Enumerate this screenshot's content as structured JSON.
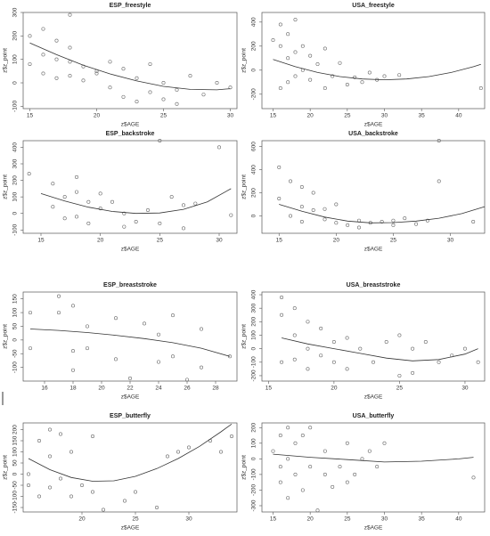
{
  "chart_data": [
    {
      "type": "scatter",
      "title": "ESP_freestyle",
      "xlabel": "z$AGE",
      "ylabel": "z$z_point",
      "xlim": [
        14.5,
        30.5
      ],
      "ylim": [
        -110,
        300
      ],
      "xticks": [
        15,
        20,
        25,
        30
      ],
      "yticks": [
        -100,
        0,
        100,
        200,
        300
      ],
      "x": [
        15,
        15,
        16,
        16,
        16,
        17,
        17,
        17,
        18,
        18,
        18,
        18,
        19,
        19,
        20,
        20,
        21,
        21,
        22,
        22,
        23,
        23,
        24,
        24,
        25,
        25,
        26,
        26,
        27,
        28,
        29,
        30
      ],
      "values": [
        200,
        80,
        230,
        120,
        40,
        180,
        100,
        20,
        290,
        150,
        90,
        30,
        70,
        10,
        50,
        40,
        90,
        -20,
        60,
        -60,
        20,
        -80,
        80,
        -40,
        0,
        -70,
        -30,
        -90,
        30,
        -50,
        0,
        -20
      ],
      "fit": {
        "x": [
          15,
          17,
          19,
          21,
          23,
          25,
          27,
          29,
          30
        ],
        "values": [
          170,
          120,
          75,
          38,
          8,
          -15,
          -28,
          -30,
          -25
        ]
      },
      "point_color": "#666666",
      "line_color": "#333333"
    },
    {
      "type": "scatter",
      "title": "USA_freestyle",
      "xlabel": "z$AGE",
      "ylabel": "z$z_point",
      "xlim": [
        13.5,
        43.5
      ],
      "ylim": [
        -320,
        480
      ],
      "xticks": [
        15,
        20,
        25,
        30,
        35,
        40
      ],
      "yticks": [
        -200,
        0,
        200,
        400
      ],
      "x": [
        15,
        16,
        16,
        16,
        17,
        17,
        17,
        18,
        18,
        18,
        19,
        19,
        20,
        20,
        21,
        22,
        22,
        23,
        24,
        25,
        26,
        27,
        28,
        29,
        30,
        32,
        43
      ],
      "values": [
        250,
        380,
        200,
        -150,
        300,
        100,
        -100,
        420,
        150,
        -50,
        200,
        0,
        120,
        -80,
        50,
        180,
        -150,
        -50,
        60,
        -120,
        -60,
        -100,
        -20,
        -80,
        -50,
        -40,
        -150
      ],
      "fit": {
        "x": [
          15,
          18,
          21,
          24,
          27,
          30,
          33,
          36,
          39,
          42,
          43
        ],
        "values": [
          90,
          29,
          -19,
          -53,
          -73,
          -80,
          -73,
          -53,
          -19,
          29,
          48
        ]
      },
      "point_color": "#666666",
      "line_color": "#333333"
    },
    {
      "type": "scatter",
      "title": "ESP_backstroke",
      "xlabel": "z$AGE",
      "ylabel": "z$z_point",
      "xlim": [
        13.5,
        31.5
      ],
      "ylim": [
        -120,
        440
      ],
      "xticks": [
        15,
        20,
        25,
        30
      ],
      "yticks": [
        -100,
        0,
        100,
        200,
        300,
        400
      ],
      "x": [
        14,
        16,
        16,
        17,
        17,
        18,
        18,
        18,
        19,
        19,
        20,
        20,
        21,
        22,
        22,
        23,
        24,
        25,
        25,
        26,
        27,
        27,
        28,
        30,
        31
      ],
      "values": [
        240,
        180,
        40,
        100,
        -30,
        220,
        130,
        -20,
        70,
        -60,
        120,
        30,
        70,
        0,
        -80,
        -50,
        20,
        440,
        -60,
        100,
        50,
        -90,
        60,
        400,
        -10
      ],
      "fit": {
        "x": [
          15,
          17,
          19,
          21,
          23,
          25,
          27,
          29,
          31
        ],
        "values": [
          120,
          75,
          38,
          12,
          0,
          3,
          25,
          70,
          150
        ]
      },
      "point_color": "#666666",
      "line_color": "#333333"
    },
    {
      "type": "scatter",
      "title": "USA_backstroke",
      "xlabel": "z$AGE",
      "ylabel": "z$z_point",
      "xlim": [
        13.5,
        33
      ],
      "ylim": [
        -150,
        650
      ],
      "xticks": [
        15,
        20,
        25,
        30
      ],
      "yticks": [
        0,
        200,
        400,
        600
      ],
      "x": [
        15,
        15,
        16,
        16,
        17,
        17,
        17,
        18,
        18,
        19,
        19,
        20,
        20,
        21,
        22,
        22,
        23,
        24,
        25,
        25,
        26,
        27,
        28,
        29,
        29,
        32
      ],
      "values": [
        420,
        150,
        300,
        0,
        250,
        80,
        -50,
        200,
        50,
        -30,
        60,
        100,
        -60,
        -80,
        -40,
        -100,
        -60,
        -50,
        -80,
        -40,
        -20,
        -70,
        -40,
        650,
        300,
        -50
      ],
      "fit": {
        "x": [
          15,
          17,
          19,
          21,
          23,
          25,
          27,
          29,
          31,
          33
        ],
        "values": [
          100,
          40,
          -10,
          -45,
          -60,
          -58,
          -45,
          -20,
          20,
          80
        ]
      },
      "point_color": "#666666",
      "line_color": "#333333"
    },
    {
      "type": "scatter",
      "title": "ESP_breaststroke",
      "xlabel": "z$AGE",
      "ylabel": "z$z_point",
      "xlim": [
        14.5,
        29.5
      ],
      "ylim": [
        -150,
        175
      ],
      "xticks": [
        16,
        18,
        20,
        22,
        24,
        26,
        28
      ],
      "yticks": [
        -100,
        -50,
        0,
        50,
        100,
        150
      ],
      "x": [
        15,
        15,
        17,
        17,
        18,
        18,
        18,
        19,
        19,
        21,
        21,
        22,
        23,
        24,
        24,
        25,
        25,
        26,
        27,
        27,
        29
      ],
      "values": [
        100,
        -30,
        160,
        100,
        125,
        -40,
        -110,
        -30,
        50,
        80,
        -70,
        -140,
        60,
        -80,
        20,
        90,
        -60,
        -145,
        40,
        -100,
        -60
      ],
      "fit": {
        "x": [
          15,
          17,
          19,
          21,
          23,
          25,
          27,
          29
        ],
        "values": [
          40,
          35,
          27,
          17,
          5,
          -10,
          -30,
          -60
        ]
      },
      "point_color": "#666666",
      "line_color": "#333333"
    },
    {
      "type": "scatter",
      "title": "USA_breaststroke",
      "xlabel": "z$AGE",
      "ylabel": "z$z_point",
      "xlim": [
        14.5,
        31.5
      ],
      "ylim": [
        -240,
        420
      ],
      "xticks": [
        15,
        20,
        25,
        30
      ],
      "yticks": [
        -200,
        -100,
        0,
        100,
        200,
        300,
        400
      ],
      "x": [
        16,
        16,
        16,
        17,
        17,
        17,
        18,
        18,
        18,
        19,
        19,
        20,
        20,
        21,
        21,
        22,
        23,
        24,
        25,
        25,
        26,
        26,
        27,
        28,
        29,
        30,
        31
      ],
      "values": [
        380,
        250,
        -100,
        300,
        100,
        -80,
        200,
        0,
        -150,
        150,
        -50,
        50,
        -100,
        80,
        -150,
        0,
        -100,
        50,
        -200,
        100,
        -180,
        0,
        50,
        -100,
        -50,
        0,
        -100
      ],
      "fit": {
        "x": [
          16,
          18,
          20,
          22,
          24,
          26,
          28,
          30,
          31
        ],
        "values": [
          80,
          35,
          0,
          -35,
          -70,
          -90,
          -80,
          -40,
          0
        ]
      },
      "point_color": "#666666",
      "line_color": "#333333"
    },
    {
      "type": "scatter",
      "title": "ESP_butterfly",
      "xlabel": "z$AGE",
      "ylabel": "z$z_point",
      "xlim": [
        14.5,
        34.5
      ],
      "ylim": [
        -170,
        230
      ],
      "xticks": [
        20,
        25,
        30
      ],
      "yticks": [
        -150,
        -100,
        -50,
        0,
        50,
        100,
        150,
        200
      ],
      "x": [
        15,
        15,
        16,
        16,
        17,
        17,
        17,
        18,
        18,
        19,
        19,
        20,
        21,
        21,
        22,
        24,
        25,
        27,
        28,
        29,
        30,
        32,
        33,
        34
      ],
      "values": [
        -50,
        0,
        150,
        -100,
        200,
        80,
        -60,
        180,
        -20,
        100,
        -100,
        -50,
        -80,
        170,
        -160,
        -120,
        -80,
        -150,
        80,
        100,
        120,
        150,
        100,
        170
      ],
      "fit": {
        "x": [
          15,
          17,
          19,
          21,
          23,
          25,
          27,
          29,
          31,
          33,
          34
        ],
        "values": [
          70,
          20,
          -15,
          -32,
          -30,
          -10,
          25,
          70,
          125,
          190,
          225
        ]
      },
      "point_color": "#666666",
      "line_color": "#333333"
    },
    {
      "type": "scatter",
      "title": "USA_butterfly",
      "xlabel": "z$AGE",
      "ylabel": "z$z_point",
      "xlim": [
        13.5,
        43.5
      ],
      "ylim": [
        -340,
        230
      ],
      "xticks": [
        15,
        20,
        25,
        30,
        35,
        40
      ],
      "yticks": [
        -300,
        -200,
        -100,
        0,
        100,
        200
      ],
      "x": [
        15,
        16,
        16,
        16,
        17,
        17,
        17,
        18,
        18,
        19,
        19,
        20,
        20,
        21,
        22,
        22,
        23,
        24,
        25,
        25,
        26,
        27,
        28,
        29,
        30,
        42
      ],
      "values": [
        50,
        150,
        -50,
        -150,
        200,
        0,
        -250,
        100,
        -100,
        150,
        -200,
        200,
        -50,
        -330,
        -100,
        50,
        -180,
        -50,
        100,
        -150,
        -100,
        0,
        50,
        -50,
        100,
        -120
      ],
      "fit": {
        "x": [
          15,
          20,
          25,
          30,
          35,
          40,
          42
        ],
        "values": [
          30,
          10,
          -5,
          -20,
          -15,
          0,
          10
        ]
      },
      "point_color": "#666666",
      "line_color": "#333333"
    }
  ]
}
